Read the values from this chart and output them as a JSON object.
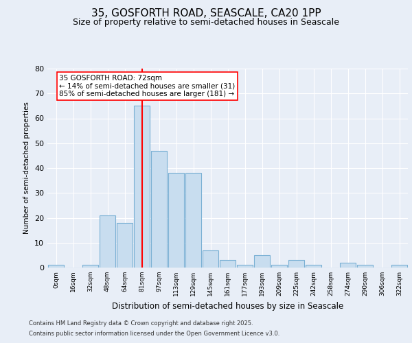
{
  "title_line1": "35, GOSFORTH ROAD, SEASCALE, CA20 1PP",
  "title_line2": "Size of property relative to semi-detached houses in Seascale",
  "xlabel": "Distribution of semi-detached houses by size in Seascale",
  "ylabel": "Number of semi-detached properties",
  "categories": [
    "0sqm",
    "16sqm",
    "32sqm",
    "48sqm",
    "64sqm",
    "81sqm",
    "97sqm",
    "113sqm",
    "129sqm",
    "145sqm",
    "161sqm",
    "177sqm",
    "193sqm",
    "209sqm",
    "225sqm",
    "242sqm",
    "258sqm",
    "274sqm",
    "290sqm",
    "306sqm",
    "322sqm"
  ],
  "values": [
    1,
    0,
    1,
    21,
    18,
    65,
    47,
    38,
    38,
    7,
    3,
    1,
    5,
    1,
    3,
    1,
    0,
    2,
    1,
    0,
    1
  ],
  "bar_color": "#c8ddef",
  "bar_edge_color": "#7ab0d4",
  "red_line_index": 5,
  "red_line_label": "35 GOSFORTH ROAD: 72sqm",
  "smaller_pct": "14%",
  "smaller_n": 31,
  "larger_pct": "85%",
  "larger_n": 181,
  "ylim": [
    0,
    80
  ],
  "yticks": [
    0,
    10,
    20,
    30,
    40,
    50,
    60,
    70,
    80
  ],
  "background_color": "#e8eef7",
  "plot_background_color": "#e8eef7",
  "footer_line1": "Contains HM Land Registry data © Crown copyright and database right 2025.",
  "footer_line2": "Contains public sector information licensed under the Open Government Licence v3.0.",
  "annotation_fontsize": 7.5,
  "title1_fontsize": 11,
  "title2_fontsize": 9
}
